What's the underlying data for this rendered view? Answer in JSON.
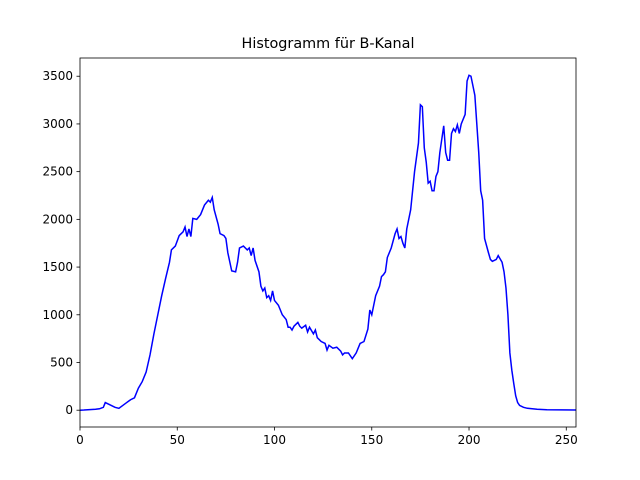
{
  "chart_data": {
    "type": "line",
    "title": "Histogramm für B-Kanal",
    "x": [
      0,
      2,
      4,
      6,
      8,
      10,
      12,
      13,
      15,
      18,
      20,
      22,
      24,
      26,
      28,
      30,
      32,
      34,
      36,
      38,
      40,
      42,
      44,
      46,
      47,
      49,
      51,
      53,
      54,
      55,
      56,
      57,
      58,
      60,
      62,
      64,
      66,
      67,
      68,
      69,
      71,
      72,
      74,
      75,
      76,
      78,
      80,
      81,
      82,
      84,
      86,
      87,
      88,
      89,
      90,
      92,
      93,
      94,
      95,
      96,
      97,
      98,
      99,
      100,
      102,
      104,
      106,
      107,
      108,
      109,
      110,
      112,
      113,
      114,
      116,
      117,
      118,
      120,
      121,
      122,
      124,
      126,
      127,
      128,
      130,
      132,
      134,
      135,
      136,
      138,
      140,
      142,
      144,
      146,
      148,
      149,
      150,
      152,
      154,
      155,
      156,
      157,
      158,
      160,
      162,
      163,
      164,
      165,
      166,
      167,
      168,
      170,
      172,
      174,
      175,
      176,
      177,
      178,
      179,
      180,
      181,
      182,
      183,
      184,
      185,
      187,
      188,
      189,
      190,
      191,
      192,
      193,
      194,
      195,
      196,
      198,
      199,
      200,
      201,
      202,
      203,
      204,
      205,
      206,
      207,
      208,
      210,
      211,
      212,
      214,
      215,
      217,
      218,
      219,
      220,
      221,
      222,
      223,
      224,
      225,
      226,
      228,
      230,
      235,
      240,
      255
    ],
    "series": [
      {
        "name": "B",
        "color": "#0000ff",
        "values": [
          0,
          2,
          5,
          8,
          10,
          15,
          30,
          80,
          60,
          30,
          20,
          50,
          80,
          110,
          130,
          230,
          300,
          400,
          580,
          800,
          1000,
          1200,
          1380,
          1550,
          1680,
          1720,
          1830,
          1870,
          1920,
          1820,
          1900,
          1820,
          2010,
          2000,
          2050,
          2150,
          2200,
          2180,
          2230,
          2100,
          1950,
          1850,
          1830,
          1800,
          1650,
          1460,
          1450,
          1550,
          1700,
          1720,
          1680,
          1700,
          1620,
          1700,
          1570,
          1450,
          1300,
          1250,
          1280,
          1180,
          1200,
          1150,
          1250,
          1150,
          1100,
          1000,
          950,
          870,
          870,
          840,
          880,
          920,
          880,
          860,
          890,
          820,
          870,
          800,
          840,
          760,
          720,
          700,
          630,
          680,
          650,
          660,
          620,
          580,
          600,
          600,
          540,
          600,
          700,
          720,
          850,
          1050,
          1000,
          1200,
          1300,
          1400,
          1420,
          1450,
          1600,
          1700,
          1850,
          1900,
          1800,
          1820,
          1750,
          1700,
          1900,
          2100,
          2500,
          2800,
          3200,
          3180,
          2750,
          2600,
          2380,
          2400,
          2300,
          2300,
          2450,
          2500,
          2700,
          2980,
          2700,
          2620,
          2620,
          2900,
          2950,
          2920,
          2990,
          2900,
          3000,
          3100,
          3450,
          3510,
          3500,
          3400,
          3300,
          3000,
          2700,
          2300,
          2200,
          1800,
          1650,
          1580,
          1560,
          1580,
          1620,
          1550,
          1450,
          1280,
          1000,
          600,
          420,
          280,
          150,
          80,
          50,
          30,
          20,
          10,
          5,
          2
        ]
      }
    ],
    "xlim": [
      0,
      255
    ],
    "ylim": [
      -176,
      3691
    ],
    "xticks": [
      0,
      50,
      100,
      150,
      200,
      250
    ],
    "yticks": [
      0,
      500,
      1000,
      1500,
      2000,
      2500,
      3000,
      3500
    ]
  }
}
